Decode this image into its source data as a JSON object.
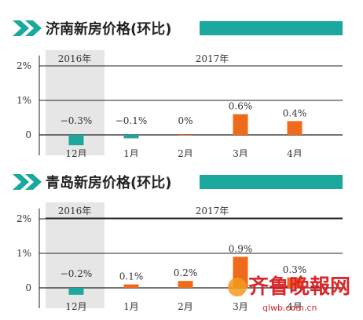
{
  "colors": {
    "accent": "#1aa99c",
    "positive_bar": "#f06a1c",
    "negative_bar": "#1aa99c",
    "shade": "#e6e6e6",
    "watermark": "#d8282b"
  },
  "chart_data": [
    {
      "type": "bar",
      "title": "济南新房价格(环比)",
      "categories": [
        "12月",
        "1月",
        "2月",
        "3月",
        "4月"
      ],
      "values": [
        -0.3,
        -0.1,
        0.0,
        0.6,
        0.4
      ],
      "value_labels": [
        "−0.3%",
        "−0.1%",
        "0%",
        "0.6%",
        "0.4%"
      ],
      "year_groups": [
        "2016年",
        "2017年"
      ],
      "y_ticks": [
        "2%",
        "1%",
        "0"
      ],
      "ylim": [
        -0.35,
        2.3
      ],
      "grid": true
    },
    {
      "type": "bar",
      "title": "青岛新房价格(环比)",
      "categories": [
        "12月",
        "1月",
        "2月",
        "3月",
        "4月"
      ],
      "values": [
        -0.2,
        0.1,
        0.2,
        0.9,
        0.3
      ],
      "value_labels": [
        "−0.2%",
        "0.1%",
        "0.2%",
        "0.9%",
        "0.3%"
      ],
      "year_groups": [
        "2016年",
        "2017年"
      ],
      "y_ticks": [
        "2%",
        "1%",
        "0"
      ],
      "ylim": [
        -0.35,
        2.3
      ],
      "grid": true
    }
  ],
  "watermark": {
    "text": "齐鲁晚報网",
    "url": "qlwb.com.cn"
  }
}
